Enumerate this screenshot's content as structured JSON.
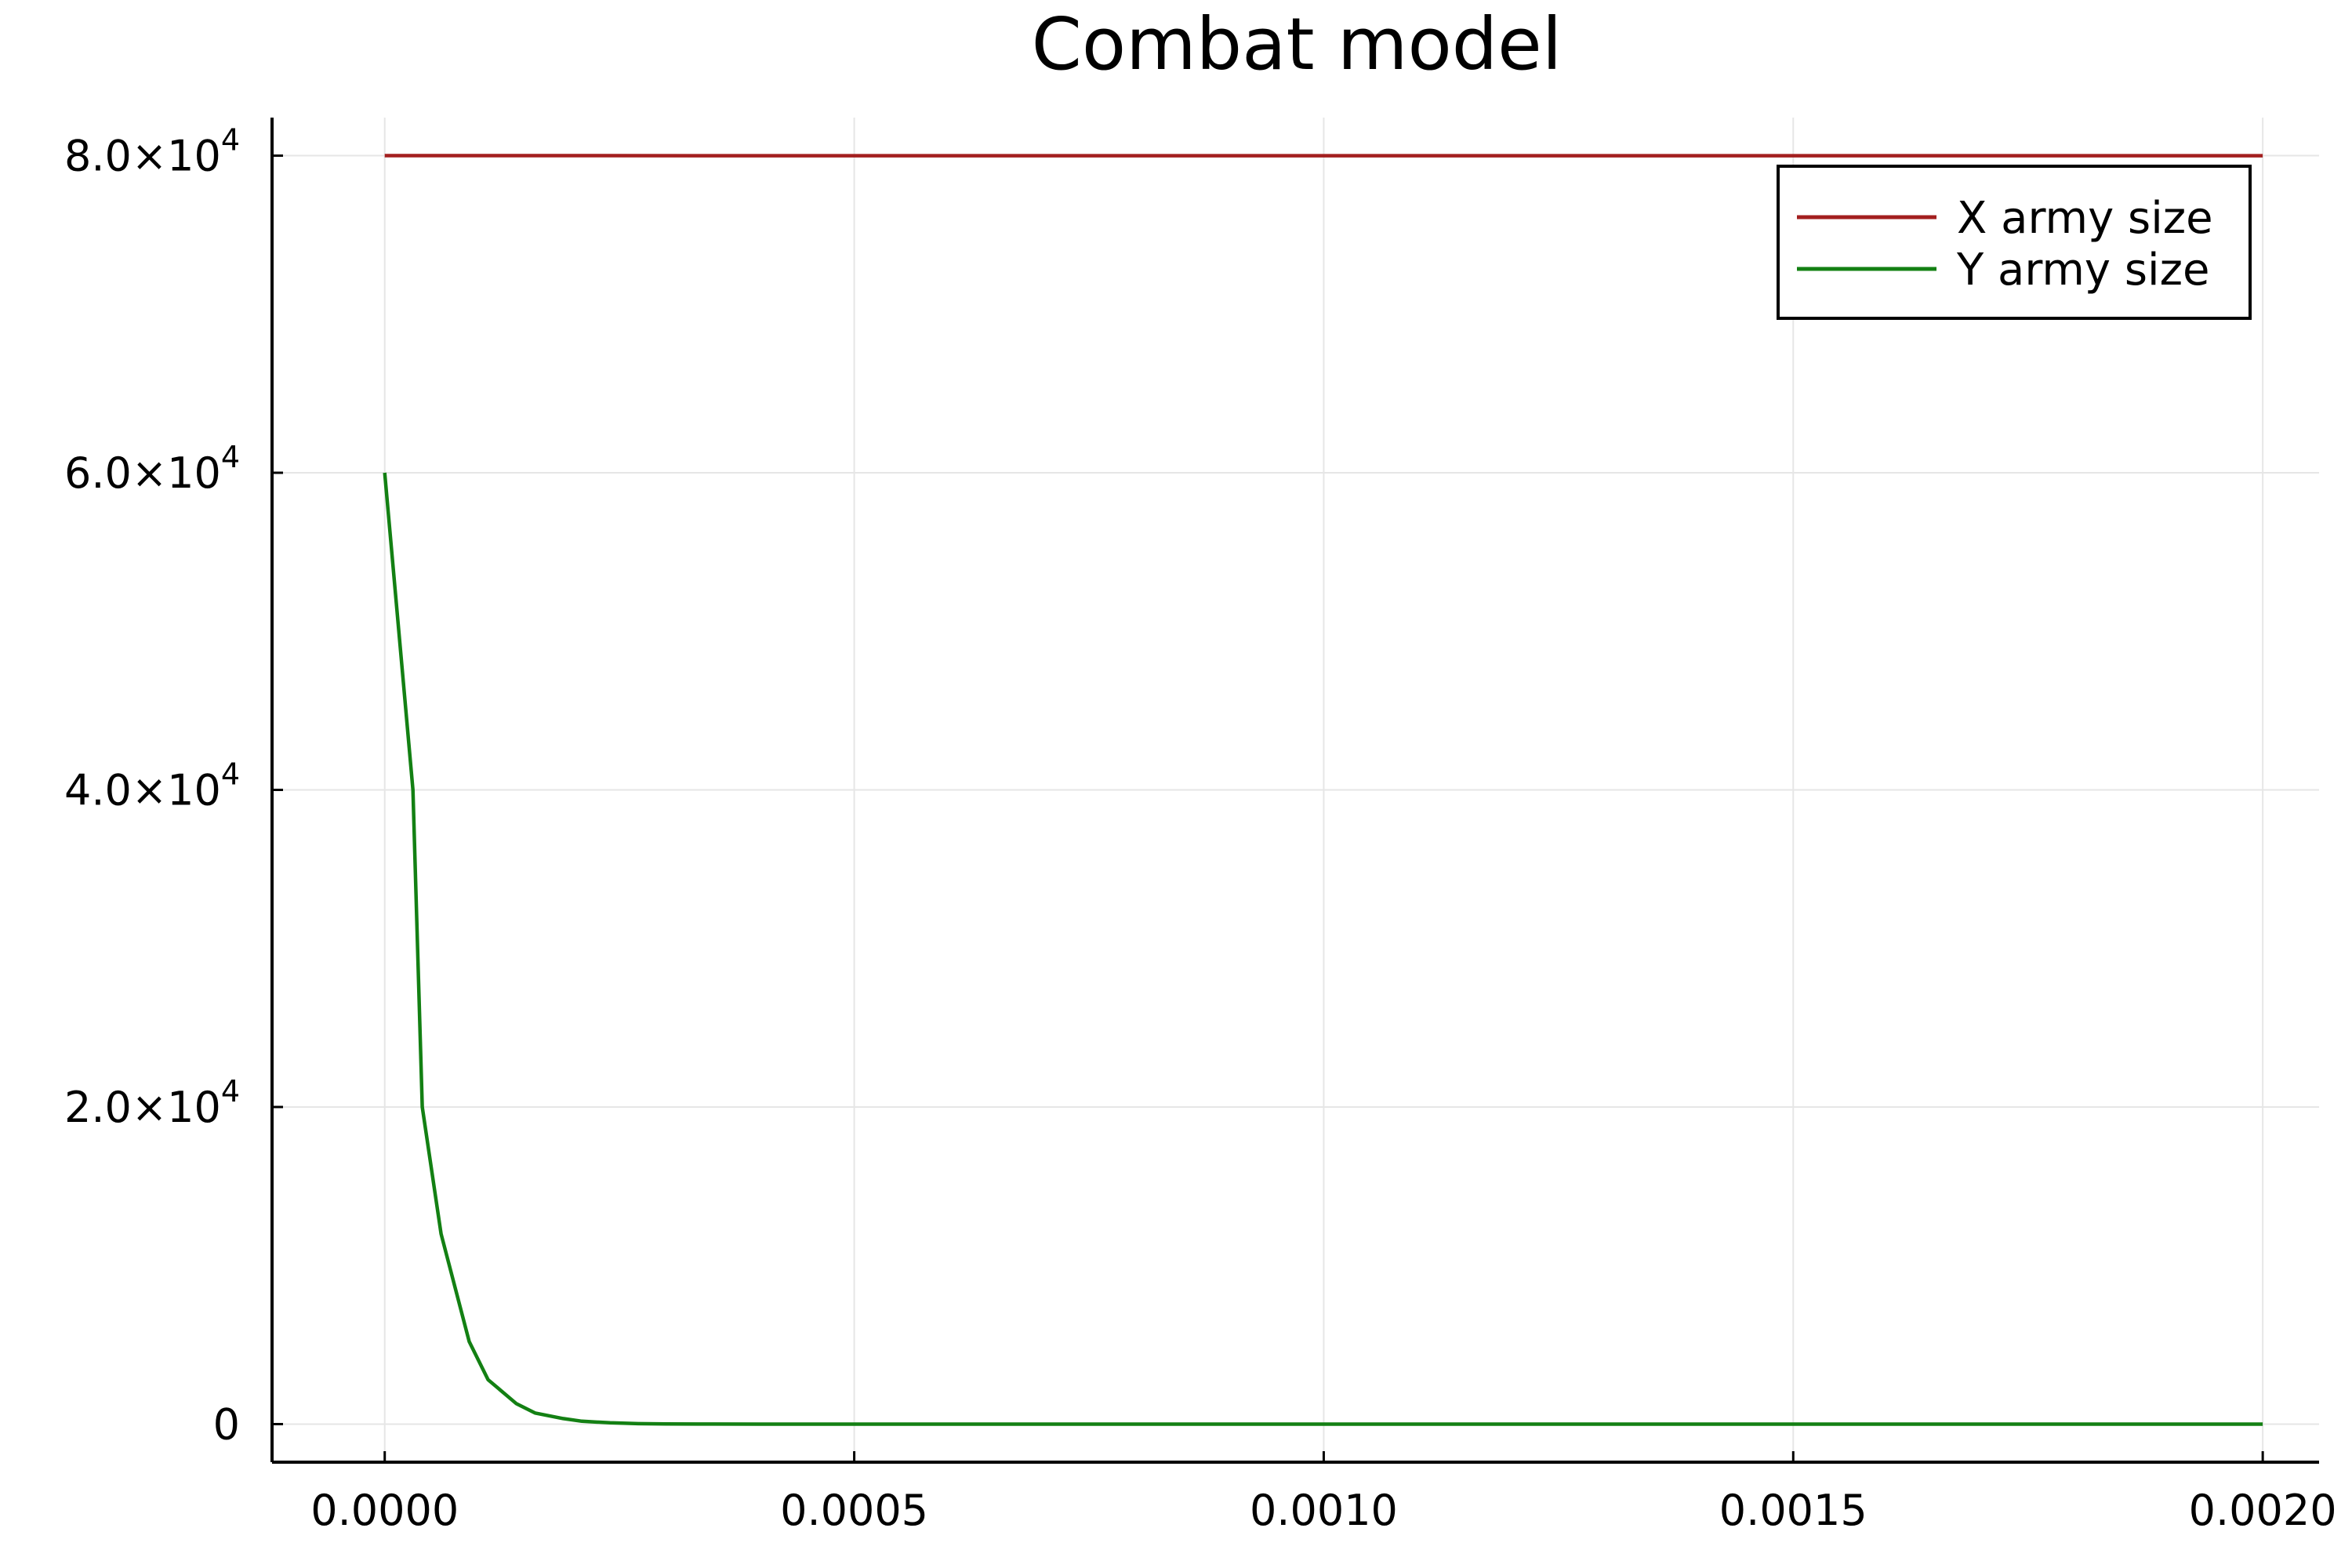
{
  "chart_data": {
    "type": "line",
    "title": "Combat model",
    "xlabel": "",
    "ylabel": "",
    "xlim": [
      -0.00012,
      0.00206
    ],
    "ylim": [
      -2400,
      82400
    ],
    "grid": true,
    "legend_position": "top-right",
    "x_ticks": [
      {
        "value": 0.0,
        "label": "0.0000"
      },
      {
        "value": 0.0005,
        "label": "0.0005"
      },
      {
        "value": 0.001,
        "label": "0.0010"
      },
      {
        "value": 0.0015,
        "label": "0.0015"
      },
      {
        "value": 0.002,
        "label": "0.0020"
      }
    ],
    "y_ticks": [
      {
        "value": 0,
        "label": "0"
      },
      {
        "value": 20000,
        "label": "2.0×10",
        "exp": "4"
      },
      {
        "value": 40000,
        "label": "4.0×10",
        "exp": "4"
      },
      {
        "value": 60000,
        "label": "6.0×10",
        "exp": "4"
      },
      {
        "value": 80000,
        "label": "8.0×10",
        "exp": "4"
      }
    ],
    "series": [
      {
        "name": "X army size",
        "color": "#a31f1f",
        "points": [
          [
            0.0,
            80000
          ],
          [
            0.0005,
            79999
          ],
          [
            0.001,
            79998
          ],
          [
            0.0015,
            79997
          ],
          [
            0.002,
            79996
          ]
        ]
      },
      {
        "name": "Y army size",
        "color": "#138013",
        "points": [
          [
            0.0,
            60000
          ],
          [
            3e-05,
            40000
          ],
          [
            4e-05,
            20000
          ],
          [
            6e-05,
            12000
          ],
          [
            9e-05,
            5200
          ],
          [
            0.00011,
            2800
          ],
          [
            0.00014,
            1300
          ],
          [
            0.00016,
            700
          ],
          [
            0.00019,
            350
          ],
          [
            0.00021,
            180
          ],
          [
            0.00024,
            80
          ],
          [
            0.00027,
            30
          ],
          [
            0.0003,
            10
          ],
          [
            0.00035,
            2
          ],
          [
            0.0004,
            0
          ],
          [
            0.0008,
            0
          ],
          [
            0.0012,
            0
          ],
          [
            0.0016,
            0
          ],
          [
            0.002,
            0
          ]
        ]
      }
    ]
  }
}
